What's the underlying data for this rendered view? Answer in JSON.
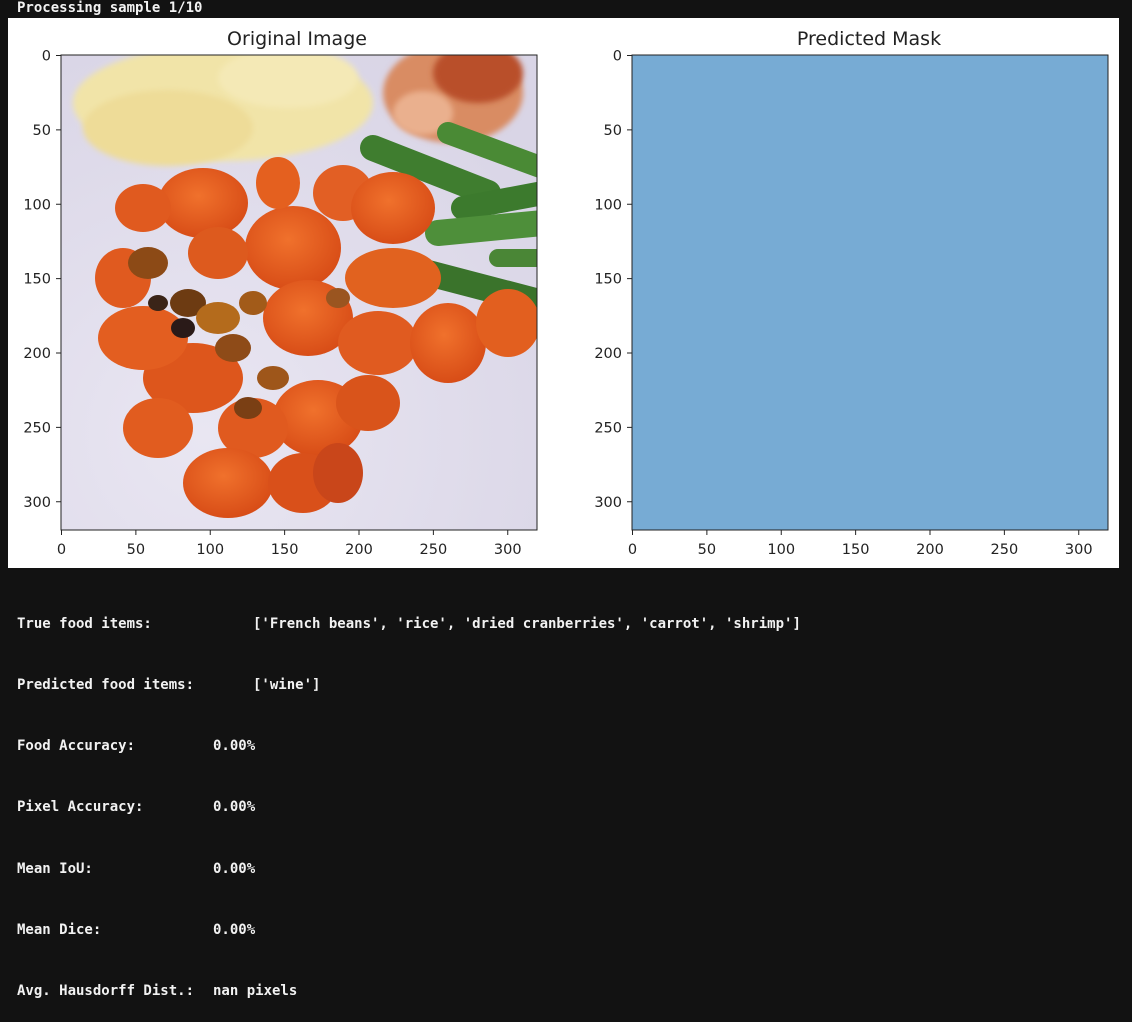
{
  "header": {
    "status": "Processing sample 1/10"
  },
  "plots": {
    "original": {
      "title": "Original Image",
      "x_ticks": [
        "0",
        "50",
        "100",
        "150",
        "200",
        "250",
        "300"
      ],
      "y_ticks": [
        "0",
        "50",
        "100",
        "150",
        "200",
        "250",
        "300"
      ]
    },
    "mask": {
      "title": "Predicted Mask",
      "fill_color": "#77abd4",
      "x_ticks": [
        "0",
        "50",
        "100",
        "150",
        "200",
        "250",
        "300"
      ],
      "y_ticks": [
        "0",
        "50",
        "100",
        "150",
        "200",
        "250",
        "300"
      ]
    }
  },
  "metrics": {
    "true_items": {
      "label": "True food items:",
      "value": "['French beans', 'rice', 'dried cranberries', 'carrot', 'shrimp']"
    },
    "pred_items": {
      "label": "Predicted food items:",
      "value": "['wine']"
    },
    "food_acc": {
      "label": "Food Accuracy:",
      "value": "0.00%"
    },
    "pixel_acc": {
      "label": "Pixel Accuracy:",
      "value": "0.00%"
    },
    "mean_iou": {
      "label": "Mean IoU:",
      "value": "0.00%"
    },
    "mean_dice": {
      "label": "Mean Dice:",
      "value": "0.00%"
    },
    "hausdorff": {
      "label": "Avg. Hausdorff Dist.:",
      "value": "nan pixels"
    }
  }
}
